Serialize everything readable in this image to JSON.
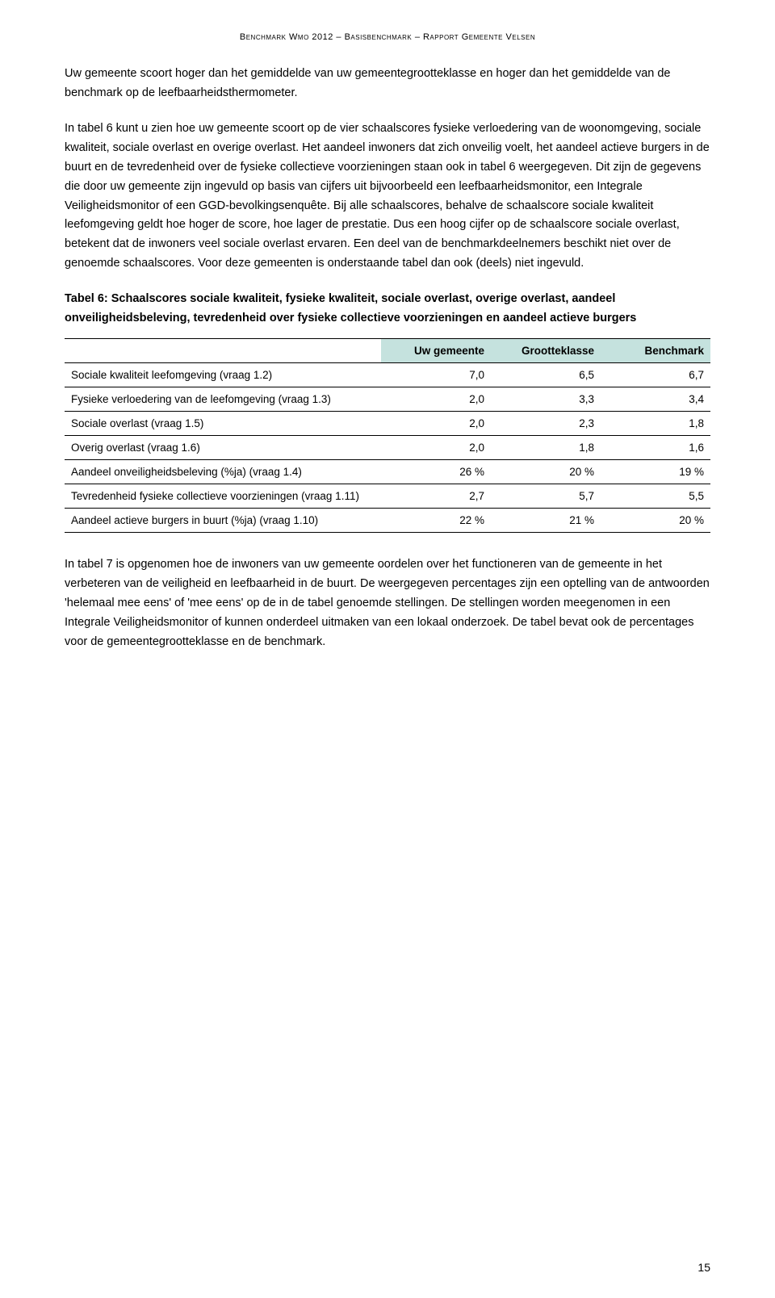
{
  "header": {
    "running": "Benchmark Wmo 2012 – Basisbenchmark – Rapport Gemeente Velsen"
  },
  "paragraphs": {
    "p1": "Uw gemeente scoort hoger dan het gemiddelde van uw gemeentegrootteklasse en hoger dan het gemiddelde van de benchmark op de leefbaarheidsthermometer.",
    "p2": "In tabel 6 kunt u zien hoe uw gemeente scoort op de vier schaalscores fysieke verloedering van de woonomgeving, sociale kwaliteit, sociale overlast en overige overlast. Het aandeel inwoners dat zich onveilig voelt, het aandeel actieve burgers in de buurt en de tevredenheid over de fysieke collectieve voorzieningen staan ook in tabel 6 weergegeven. Dit zijn de gegevens die door uw gemeente zijn ingevuld op basis van cijfers uit bijvoorbeeld een leefbaarheidsmonitor, een Integrale Veiligheidsmonitor of een GGD-bevolkingsenquête. Bij alle schaalscores, behalve de schaalscore sociale kwaliteit leefomgeving geldt hoe hoger de score, hoe lager de prestatie. Dus een hoog cijfer op de schaalscore sociale overlast, betekent dat de inwoners veel sociale overlast ervaren. Een deel van de benchmarkdeelnemers beschikt niet over de genoemde schaalscores. Voor deze gemeenten is onderstaande tabel dan ook (deels) niet ingevuld.",
    "p3": "In tabel 7 is opgenomen hoe de inwoners van uw gemeente oordelen over het functioneren van de gemeente in het verbeteren van de veiligheid en leefbaarheid in de buurt. De weergegeven percentages zijn een optelling van de antwoorden 'helemaal mee eens' of 'mee eens' op de in de tabel genoemde stellingen. De stellingen worden meegenomen in een Integrale Veiligheidsmonitor of kunnen onderdeel uitmaken van een lokaal onderzoek. De tabel bevat ook de percentages voor de gemeentegrootteklasse en de benchmark."
  },
  "table": {
    "caption": "Tabel 6: Schaalscores sociale kwaliteit, fysieke kwaliteit, sociale overlast, overige overlast, aandeel onveiligheidsbeleving, tevredenheid over fysieke collectieve voorzieningen en aandeel actieve burgers",
    "columns": {
      "c0": "",
      "c1": "Uw gemeente",
      "c2": "Grootteklasse",
      "c3": "Benchmark"
    },
    "rows": {
      "r0": {
        "label": "Sociale kwaliteit leefomgeving (vraag 1.2)",
        "v1": "7,0",
        "v2": "6,5",
        "v3": "6,7"
      },
      "r1": {
        "label": "Fysieke verloedering van de leefomgeving (vraag 1.3)",
        "v1": "2,0",
        "v2": "3,3",
        "v3": "3,4"
      },
      "r2": {
        "label": "Sociale overlast (vraag 1.5)",
        "v1": "2,0",
        "v2": "2,3",
        "v3": "1,8"
      },
      "r3": {
        "label": "Overig overlast (vraag 1.6)",
        "v1": "2,0",
        "v2": "1,8",
        "v3": "1,6"
      },
      "r4": {
        "label": "Aandeel onveiligheidsbeleving (%ja) (vraag 1.4)",
        "v1": "26 %",
        "v2": "20 %",
        "v3": "19 %"
      },
      "r5": {
        "label": "Tevredenheid fysieke collectieve voorzieningen (vraag 1.11)",
        "v1": "2,7",
        "v2": "5,7",
        "v3": "5,5"
      },
      "r6": {
        "label": "Aandeel actieve burgers in buurt (%ja) (vraag 1.10)",
        "v1": "22 %",
        "v2": "21 %",
        "v3": "20 %"
      }
    },
    "header_bg": "#c5e2de"
  },
  "pageNumber": "15"
}
